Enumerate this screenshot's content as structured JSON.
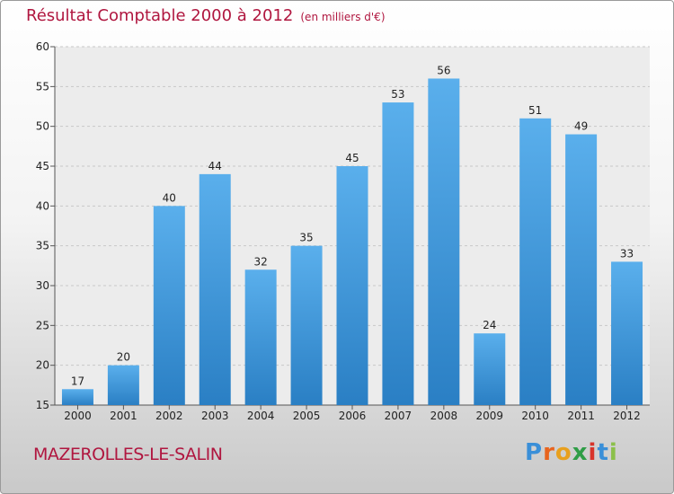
{
  "title": "Résultat Comptable 2000 à 2012",
  "unit": "(en milliers d'€)",
  "commune": "MAZEROLLES-LE-SALIN",
  "brand": {
    "letters": [
      "P",
      "r",
      "o",
      "x",
      "i",
      "t",
      "i"
    ],
    "colors": [
      "#3a8fd8",
      "#e8641e",
      "#e8a01e",
      "#2f9d46",
      "#d8342a",
      "#3a8fd8",
      "#8bc04a"
    ]
  },
  "colors": {
    "accent": "#b0163f",
    "bar_light": "#5aafec",
    "bar_dark": "#2a7fc4"
  },
  "chart_data": {
    "type": "bar",
    "title": "Résultat Comptable 2000 à 2012",
    "ylabel": "(en milliers d'€)",
    "categories": [
      "2000",
      "2001",
      "2002",
      "2003",
      "2004",
      "2005",
      "2006",
      "2007",
      "2008",
      "2009",
      "2010",
      "2011",
      "2012"
    ],
    "values": [
      17,
      20,
      40,
      44,
      32,
      35,
      45,
      53,
      56,
      24,
      51,
      49,
      33
    ],
    "ylim": [
      15,
      60
    ],
    "yticks": [
      15,
      20,
      25,
      30,
      35,
      40,
      45,
      50,
      55,
      60
    ],
    "grid": true,
    "data_labels": true
  }
}
